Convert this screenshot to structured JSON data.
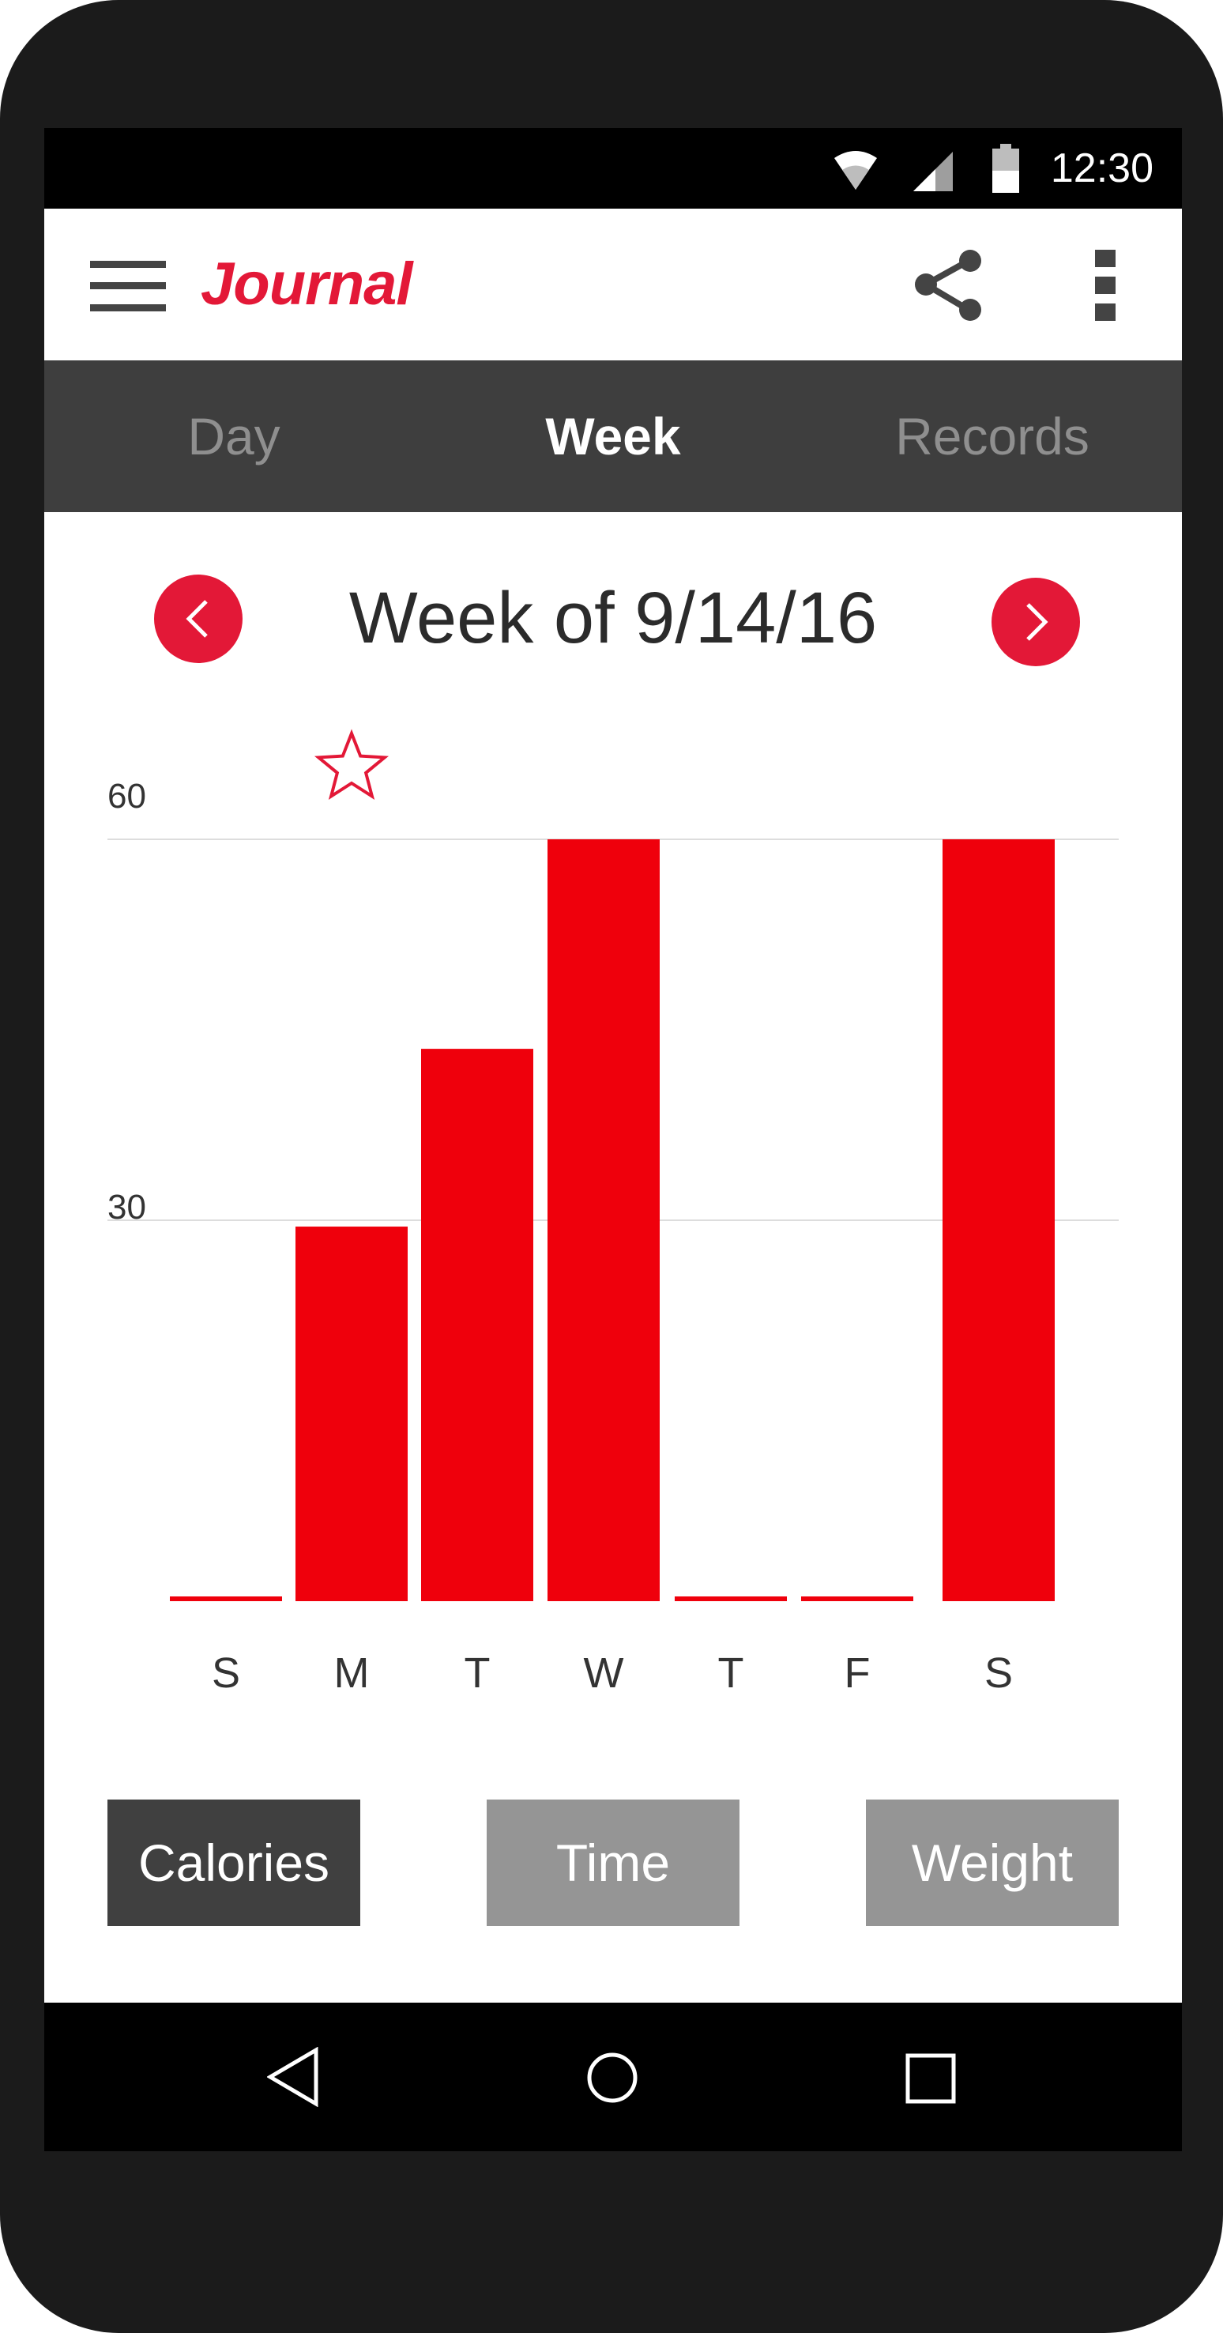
{
  "status_bar": {
    "time": "12:30"
  },
  "app_bar": {
    "title": "Journal"
  },
  "tabs": [
    {
      "label": "Day",
      "active": false
    },
    {
      "label": "Week",
      "active": true
    },
    {
      "label": "Records",
      "active": false
    }
  ],
  "week_nav": {
    "title": "Week of 9/14/16"
  },
  "chart_data": {
    "type": "bar",
    "categories": [
      "S",
      "M",
      "T",
      "W",
      "T",
      "F",
      "S"
    ],
    "values": [
      0,
      29.5,
      43.5,
      60,
      0,
      0,
      60
    ],
    "ylim": [
      0,
      60
    ],
    "yticks": [
      "30",
      "60"
    ],
    "highlight": {
      "category_index": 1,
      "marker": "star-icon"
    },
    "bar_color": "#ef000c",
    "grid": true
  },
  "metric_buttons": [
    {
      "label": "Calories",
      "selected": true
    },
    {
      "label": "Time",
      "selected": false
    },
    {
      "label": "Weight",
      "selected": false
    }
  ],
  "colors": {
    "accent": "#e31837",
    "tab_bar": "#3e3e3e",
    "selected_button": "#404040",
    "unselected_button": "#959595"
  }
}
